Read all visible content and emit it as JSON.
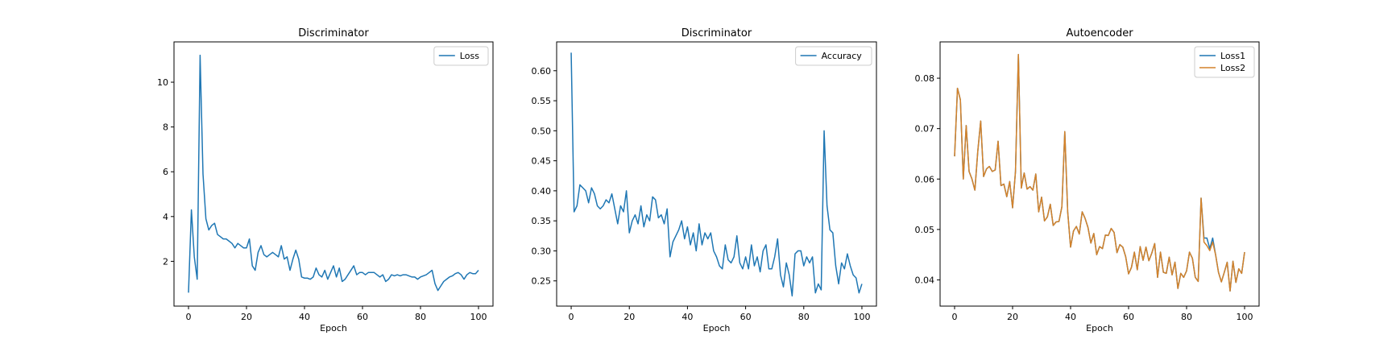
{
  "colors": {
    "blue": "#1f77b4",
    "orange": "#d4822a",
    "axes": "#000000",
    "legend_border": "#cccccc"
  },
  "chart_data": [
    {
      "type": "line",
      "title": "Discriminator",
      "xlabel": "Epoch",
      "ylabel": "",
      "xlim": [
        -5,
        105
      ],
      "ylim": [
        0.0,
        11.8
      ],
      "xticks": [
        0,
        20,
        40,
        60,
        80,
        100
      ],
      "yticks": [
        2,
        4,
        6,
        8,
        10
      ],
      "grid": false,
      "legend_position": "top-right",
      "x": [
        0,
        1,
        2,
        3,
        4,
        5,
        6,
        7,
        8,
        9,
        10,
        11,
        12,
        13,
        14,
        15,
        16,
        17,
        18,
        19,
        20,
        21,
        22,
        23,
        24,
        25,
        26,
        27,
        28,
        29,
        30,
        31,
        32,
        33,
        34,
        35,
        36,
        37,
        38,
        39,
        40,
        41,
        42,
        43,
        44,
        45,
        46,
        47,
        48,
        49,
        50,
        51,
        52,
        53,
        54,
        55,
        56,
        57,
        58,
        59,
        60,
        61,
        62,
        63,
        64,
        65,
        66,
        67,
        68,
        69,
        70,
        71,
        72,
        73,
        74,
        75,
        76,
        77,
        78,
        79,
        80,
        81,
        82,
        83,
        84,
        85,
        86,
        87,
        88,
        89,
        90,
        91,
        92,
        93,
        94,
        95,
        96,
        97,
        98,
        99,
        100
      ],
      "series": [
        {
          "name": "Loss",
          "color": "blue",
          "values": [
            0.6,
            4.3,
            2.2,
            1.2,
            11.2,
            5.9,
            3.9,
            3.4,
            3.6,
            3.7,
            3.2,
            3.1,
            3.0,
            3.0,
            2.9,
            2.8,
            2.6,
            2.8,
            2.7,
            2.6,
            2.6,
            3.0,
            1.8,
            1.6,
            2.4,
            2.7,
            2.3,
            2.2,
            2.3,
            2.4,
            2.3,
            2.2,
            2.7,
            2.1,
            2.2,
            1.6,
            2.1,
            2.5,
            2.1,
            1.3,
            1.25,
            1.25,
            1.2,
            1.3,
            1.7,
            1.4,
            1.3,
            1.6,
            1.2,
            1.5,
            1.8,
            1.3,
            1.7,
            1.1,
            1.2,
            1.4,
            1.6,
            1.8,
            1.4,
            1.5,
            1.5,
            1.4,
            1.5,
            1.5,
            1.5,
            1.4,
            1.3,
            1.4,
            1.1,
            1.2,
            1.4,
            1.35,
            1.4,
            1.35,
            1.4,
            1.4,
            1.35,
            1.3,
            1.3,
            1.2,
            1.3,
            1.35,
            1.4,
            1.5,
            1.6,
            1.0,
            0.7,
            0.9,
            1.1,
            1.2,
            1.3,
            1.35,
            1.45,
            1.5,
            1.4,
            1.2,
            1.4,
            1.5,
            1.45,
            1.45,
            1.6
          ]
        }
      ]
    },
    {
      "type": "line",
      "title": "Discriminator",
      "xlabel": "Epoch",
      "ylabel": "",
      "xlim": [
        -5,
        105
      ],
      "ylim": [
        0.208,
        0.648
      ],
      "xticks": [
        0,
        20,
        40,
        60,
        80,
        100
      ],
      "yticks": [
        "0.25",
        "0.30",
        "0.35",
        "0.40",
        "0.45",
        "0.50",
        "0.55",
        "0.60"
      ],
      "grid": false,
      "legend_position": "top-right",
      "x": [
        0,
        1,
        2,
        3,
        4,
        5,
        6,
        7,
        8,
        9,
        10,
        11,
        12,
        13,
        14,
        15,
        16,
        17,
        18,
        19,
        20,
        21,
        22,
        23,
        24,
        25,
        26,
        27,
        28,
        29,
        30,
        31,
        32,
        33,
        34,
        35,
        36,
        37,
        38,
        39,
        40,
        41,
        42,
        43,
        44,
        45,
        46,
        47,
        48,
        49,
        50,
        51,
        52,
        53,
        54,
        55,
        56,
        57,
        58,
        59,
        60,
        61,
        62,
        63,
        64,
        65,
        66,
        67,
        68,
        69,
        70,
        71,
        72,
        73,
        74,
        75,
        76,
        77,
        78,
        79,
        80,
        81,
        82,
        83,
        84,
        85,
        86,
        87,
        88,
        89,
        90,
        91,
        92,
        93,
        94,
        95,
        96,
        97,
        98,
        99,
        100
      ],
      "series": [
        {
          "name": "Accuracy",
          "color": "blue",
          "values": [
            0.63,
            0.365,
            0.375,
            0.41,
            0.405,
            0.4,
            0.38,
            0.405,
            0.395,
            0.375,
            0.37,
            0.375,
            0.385,
            0.38,
            0.395,
            0.37,
            0.345,
            0.375,
            0.365,
            0.4,
            0.33,
            0.35,
            0.36,
            0.345,
            0.375,
            0.34,
            0.36,
            0.35,
            0.39,
            0.385,
            0.355,
            0.36,
            0.345,
            0.37,
            0.29,
            0.315,
            0.325,
            0.335,
            0.35,
            0.32,
            0.34,
            0.31,
            0.33,
            0.3,
            0.345,
            0.31,
            0.33,
            0.32,
            0.33,
            0.3,
            0.29,
            0.275,
            0.27,
            0.31,
            0.285,
            0.28,
            0.29,
            0.325,
            0.28,
            0.27,
            0.29,
            0.27,
            0.31,
            0.275,
            0.29,
            0.265,
            0.3,
            0.31,
            0.27,
            0.27,
            0.29,
            0.32,
            0.26,
            0.24,
            0.28,
            0.26,
            0.225,
            0.295,
            0.3,
            0.3,
            0.275,
            0.29,
            0.28,
            0.29,
            0.23,
            0.245,
            0.235,
            0.5,
            0.375,
            0.335,
            0.33,
            0.275,
            0.245,
            0.28,
            0.27,
            0.295,
            0.275,
            0.26,
            0.255,
            0.23,
            0.245
          ]
        }
      ]
    },
    {
      "type": "line",
      "title": "Autoencoder",
      "xlabel": "Epoch",
      "ylabel": "",
      "xlim": [
        -5,
        105
      ],
      "ylim": [
        0.0348,
        0.0872
      ],
      "xticks": [
        0,
        20,
        40,
        60,
        80,
        100
      ],
      "yticks": [
        "0.04",
        "0.05",
        "0.06",
        "0.07",
        "0.08"
      ],
      "grid": false,
      "legend_position": "top-right",
      "x": [
        0,
        1,
        2,
        3,
        4,
        5,
        6,
        7,
        8,
        9,
        10,
        11,
        12,
        13,
        14,
        15,
        16,
        17,
        18,
        19,
        20,
        21,
        22,
        23,
        24,
        25,
        26,
        27,
        28,
        29,
        30,
        31,
        32,
        33,
        34,
        35,
        36,
        37,
        38,
        39,
        40,
        41,
        42,
        43,
        44,
        45,
        46,
        47,
        48,
        49,
        50,
        51,
        52,
        53,
        54,
        55,
        56,
        57,
        58,
        59,
        60,
        61,
        62,
        63,
        64,
        65,
        66,
        67,
        68,
        69,
        70,
        71,
        72,
        73,
        74,
        75,
        76,
        77,
        78,
        79,
        80,
        81,
        82,
        83,
        84,
        85,
        86,
        87,
        88,
        89,
        90,
        91,
        92,
        93,
        94,
        95,
        96,
        97,
        98,
        99,
        100
      ],
      "series": [
        {
          "name": "Loss1",
          "color": "blue",
          "values": [
            0.0645,
            0.078,
            0.0757,
            0.06,
            0.0706,
            0.0615,
            0.06,
            0.0578,
            0.0655,
            0.0715,
            0.0605,
            0.062,
            0.0625,
            0.0615,
            0.0618,
            0.0675,
            0.0587,
            0.059,
            0.0565,
            0.0595,
            0.0543,
            0.0615,
            0.0847,
            0.0582,
            0.0612,
            0.058,
            0.0585,
            0.0578,
            0.061,
            0.0535,
            0.0564,
            0.0517,
            0.0525,
            0.055,
            0.0508,
            0.0515,
            0.0516,
            0.0545,
            0.0694,
            0.0535,
            0.0465,
            0.0497,
            0.0506,
            0.0491,
            0.0535,
            0.0522,
            0.0504,
            0.0473,
            0.0492,
            0.045,
            0.0466,
            0.0462,
            0.0489,
            0.0488,
            0.0502,
            0.0494,
            0.0454,
            0.047,
            0.0465,
            0.0446,
            0.0412,
            0.0425,
            0.0455,
            0.042,
            0.0466,
            0.0439,
            0.0465,
            0.0438,
            0.0453,
            0.0472,
            0.0405,
            0.0455,
            0.0415,
            0.0413,
            0.0445,
            0.041,
            0.0435,
            0.0383,
            0.0413,
            0.0405,
            0.0418,
            0.0455,
            0.0443,
            0.0405,
            0.0397,
            0.0562,
            0.0483,
            0.0483,
            0.0462,
            0.0483,
            0.045,
            0.0415,
            0.0396,
            0.0415,
            0.0435,
            0.0378,
            0.0437,
            0.0395,
            0.0422,
            0.0413,
            0.0455
          ]
        },
        {
          "name": "Loss2",
          "color": "orange",
          "values": [
            0.0645,
            0.078,
            0.0757,
            0.06,
            0.0706,
            0.0615,
            0.06,
            0.0578,
            0.0655,
            0.0715,
            0.0605,
            0.062,
            0.0625,
            0.0615,
            0.0618,
            0.0675,
            0.0587,
            0.059,
            0.0565,
            0.0595,
            0.0543,
            0.0615,
            0.0847,
            0.0582,
            0.0612,
            0.058,
            0.0585,
            0.0578,
            0.061,
            0.0535,
            0.0564,
            0.0517,
            0.0525,
            0.055,
            0.0508,
            0.0515,
            0.0516,
            0.0545,
            0.0694,
            0.0535,
            0.0465,
            0.0497,
            0.0506,
            0.0491,
            0.0535,
            0.0522,
            0.0504,
            0.0473,
            0.0492,
            0.045,
            0.0466,
            0.0462,
            0.0489,
            0.0488,
            0.0502,
            0.0494,
            0.0454,
            0.047,
            0.0465,
            0.0446,
            0.0412,
            0.0425,
            0.0455,
            0.042,
            0.0466,
            0.0439,
            0.0465,
            0.0438,
            0.0453,
            0.0472,
            0.0405,
            0.0455,
            0.0415,
            0.0413,
            0.0445,
            0.041,
            0.0435,
            0.0383,
            0.0413,
            0.0405,
            0.0418,
            0.0455,
            0.0443,
            0.0405,
            0.0397,
            0.0562,
            0.0475,
            0.0468,
            0.0458,
            0.0475,
            0.045,
            0.0415,
            0.0396,
            0.0415,
            0.0435,
            0.0378,
            0.0437,
            0.0395,
            0.0422,
            0.0413,
            0.0455
          ]
        }
      ]
    }
  ]
}
